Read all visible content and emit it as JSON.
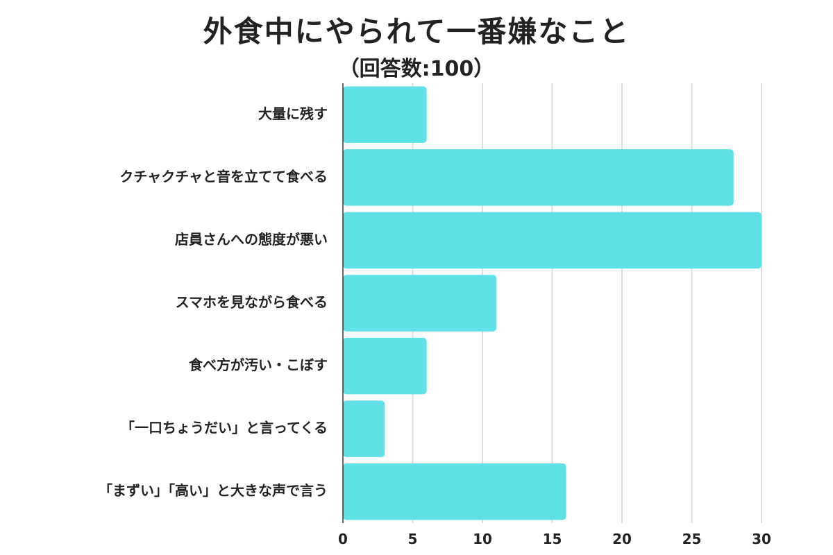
{
  "chart_data": {
    "type": "bar",
    "orientation": "horizontal",
    "title": "外食中にやられて一番嫌なこと",
    "subtitle": "（回答数:100）",
    "categories": [
      "大量に残す",
      "クチャクチャと音を立てて食べる",
      "店員さんへの態度が悪い",
      "スマホを見ながら食べる",
      "食べ方が汚い・こぼす",
      "「一口ちょうだい」と言ってくる",
      "「まずい」「高い」と大きな声で言う"
    ],
    "values": [
      6,
      28,
      30,
      11,
      6,
      3,
      16
    ],
    "xlim": [
      0,
      30
    ],
    "xticks": [
      "0",
      "5",
      "10",
      "15",
      "20",
      "25",
      "30"
    ],
    "xtick_values": [
      0,
      5,
      10,
      15,
      20,
      25,
      30
    ],
    "xlabel": "",
    "ylabel": "",
    "grid": "vertical",
    "legend": "none",
    "colors": {
      "bar": "#5FE1E6",
      "grid": "#DDDDDD",
      "axis": "#333333",
      "text": "#222222"
    }
  }
}
